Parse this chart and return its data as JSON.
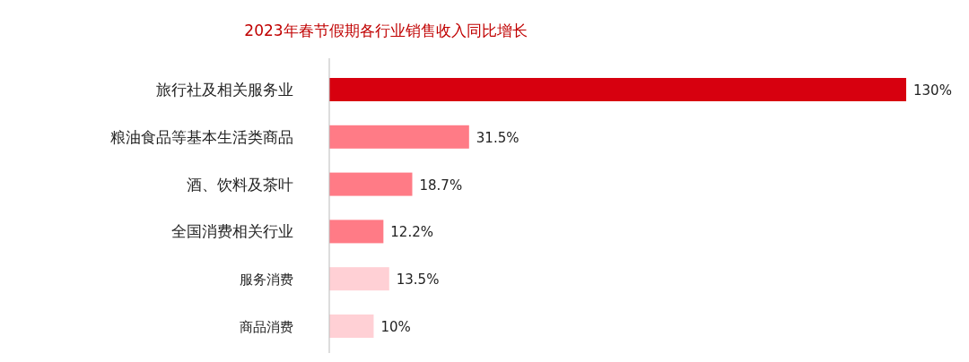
{
  "chart_data": {
    "type": "bar",
    "orientation": "horizontal",
    "title": "2023年春节假期各行业销售收入同比增长",
    "categories": [
      "旅行社及相关服务业",
      "粮油食品等基本生活类商品",
      "酒、饮料及茶叶",
      "全国消费相关行业",
      "服务消费",
      "商品消费"
    ],
    "values": [
      130,
      31.5,
      18.7,
      12.2,
      13.5,
      10
    ],
    "colors": [
      "#d7000f",
      "#ff7b86",
      "#ff7b86",
      "#ff7b86",
      "#ffd0d5",
      "#ffd0d5"
    ],
    "value_labels": [
      "130%",
      "31.5%",
      "18.7%",
      "12.2%",
      "13.5%",
      "10%"
    ]
  }
}
